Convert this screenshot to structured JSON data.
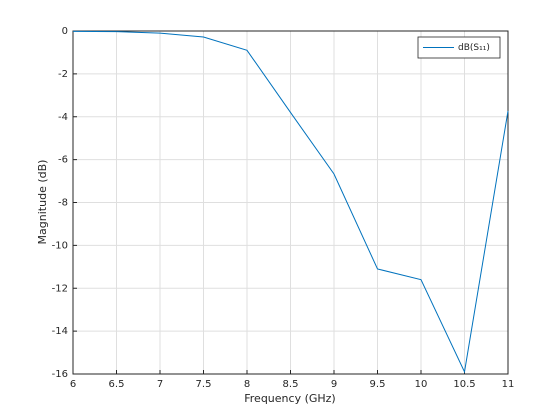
{
  "chart_data": {
    "type": "line",
    "x_label": "Frequency (GHz)",
    "y_label": "Magnitude (dB)",
    "x": [
      6,
      6.5,
      7,
      7.5,
      8,
      8.5,
      9,
      9.5,
      10,
      10.5,
      11
    ],
    "series": [
      {
        "name": "dB(S₁₁)",
        "color": "#0072bd",
        "values": [
          -0.02,
          -0.03,
          -0.1,
          -0.28,
          -0.9,
          -3.8,
          -6.67,
          -11.1,
          -11.6,
          -15.9,
          -3.73
        ]
      }
    ],
    "xlim": [
      6,
      11
    ],
    "xticks": [
      6,
      6.5,
      7,
      7.5,
      8,
      8.5,
      9,
      9.5,
      10,
      10.5,
      11
    ],
    "ylim": [
      -16,
      0
    ],
    "yticks": [
      -16,
      -14,
      -12,
      -10,
      -8,
      -6,
      -4,
      -2,
      0
    ],
    "grid": true,
    "legend": "upper right"
  }
}
